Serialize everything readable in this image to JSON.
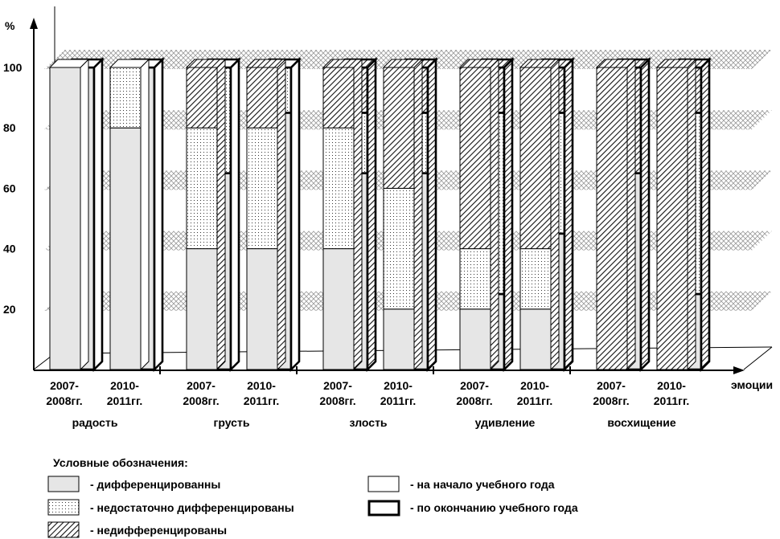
{
  "chart_data": {
    "type": "bar",
    "subtype": "stacked-3d",
    "ylabel": "%",
    "xlabel": "эмоции",
    "ylim": [
      0,
      100
    ],
    "yticks": [
      20,
      40,
      60,
      80,
      100
    ],
    "group_labels": [
      "радость",
      "грусть",
      "злость",
      "удивление",
      "восхищение"
    ],
    "period_labels": [
      "2007-\n2008гг.",
      "2010-\n2011гг."
    ],
    "stack_order": [
      "дифференцированны",
      "недостаточно дифференцированы",
      "недифференцированы"
    ],
    "series_start": {
      "name": "на начало учебного года",
      "values": [
        [
          [
            100,
            0,
            0
          ],
          [
            80,
            20,
            0
          ]
        ],
        [
          [
            40,
            40,
            20
          ],
          [
            40,
            40,
            20
          ]
        ],
        [
          [
            40,
            40,
            20
          ],
          [
            20,
            40,
            40
          ]
        ],
        [
          [
            20,
            20,
            60
          ],
          [
            20,
            20,
            60
          ]
        ],
        [
          [
            0,
            0,
            100
          ],
          [
            0,
            0,
            100
          ]
        ]
      ]
    },
    "series_end": {
      "name": "по окончанию учебного года",
      "values": [
        [
          [
            100,
            0,
            0
          ],
          [
            100,
            0,
            0
          ]
        ],
        [
          [
            65,
            35,
            0
          ],
          [
            85,
            15,
            0
          ]
        ],
        [
          [
            65,
            20,
            15
          ],
          [
            65,
            20,
            15
          ]
        ],
        [
          [
            25,
            60,
            15
          ],
          [
            45,
            40,
            15
          ]
        ],
        [
          [
            65,
            0,
            35
          ],
          [
            25,
            60,
            15
          ]
        ]
      ]
    },
    "grid": "hatched bands",
    "legend_position": "bottom"
  },
  "legend": {
    "title": "Условные обозначения:",
    "items": [
      {
        "key": "diff",
        "label": "- дифференцированны"
      },
      {
        "key": "undiff",
        "label": "- недостаточно дифференцированы"
      },
      {
        "key": "nondiff",
        "label": "- недифференцированы"
      },
      {
        "key": "start",
        "label": "- на начало учебного года"
      },
      {
        "key": "end",
        "label": "- по окончанию учебного года"
      }
    ]
  },
  "colors": {
    "diff": "#e6e6e6",
    "undiff_bg": "#ffffff",
    "undiff_dot": "#333333",
    "nondiff_line": "#111111",
    "band": "#9a9a9a"
  }
}
